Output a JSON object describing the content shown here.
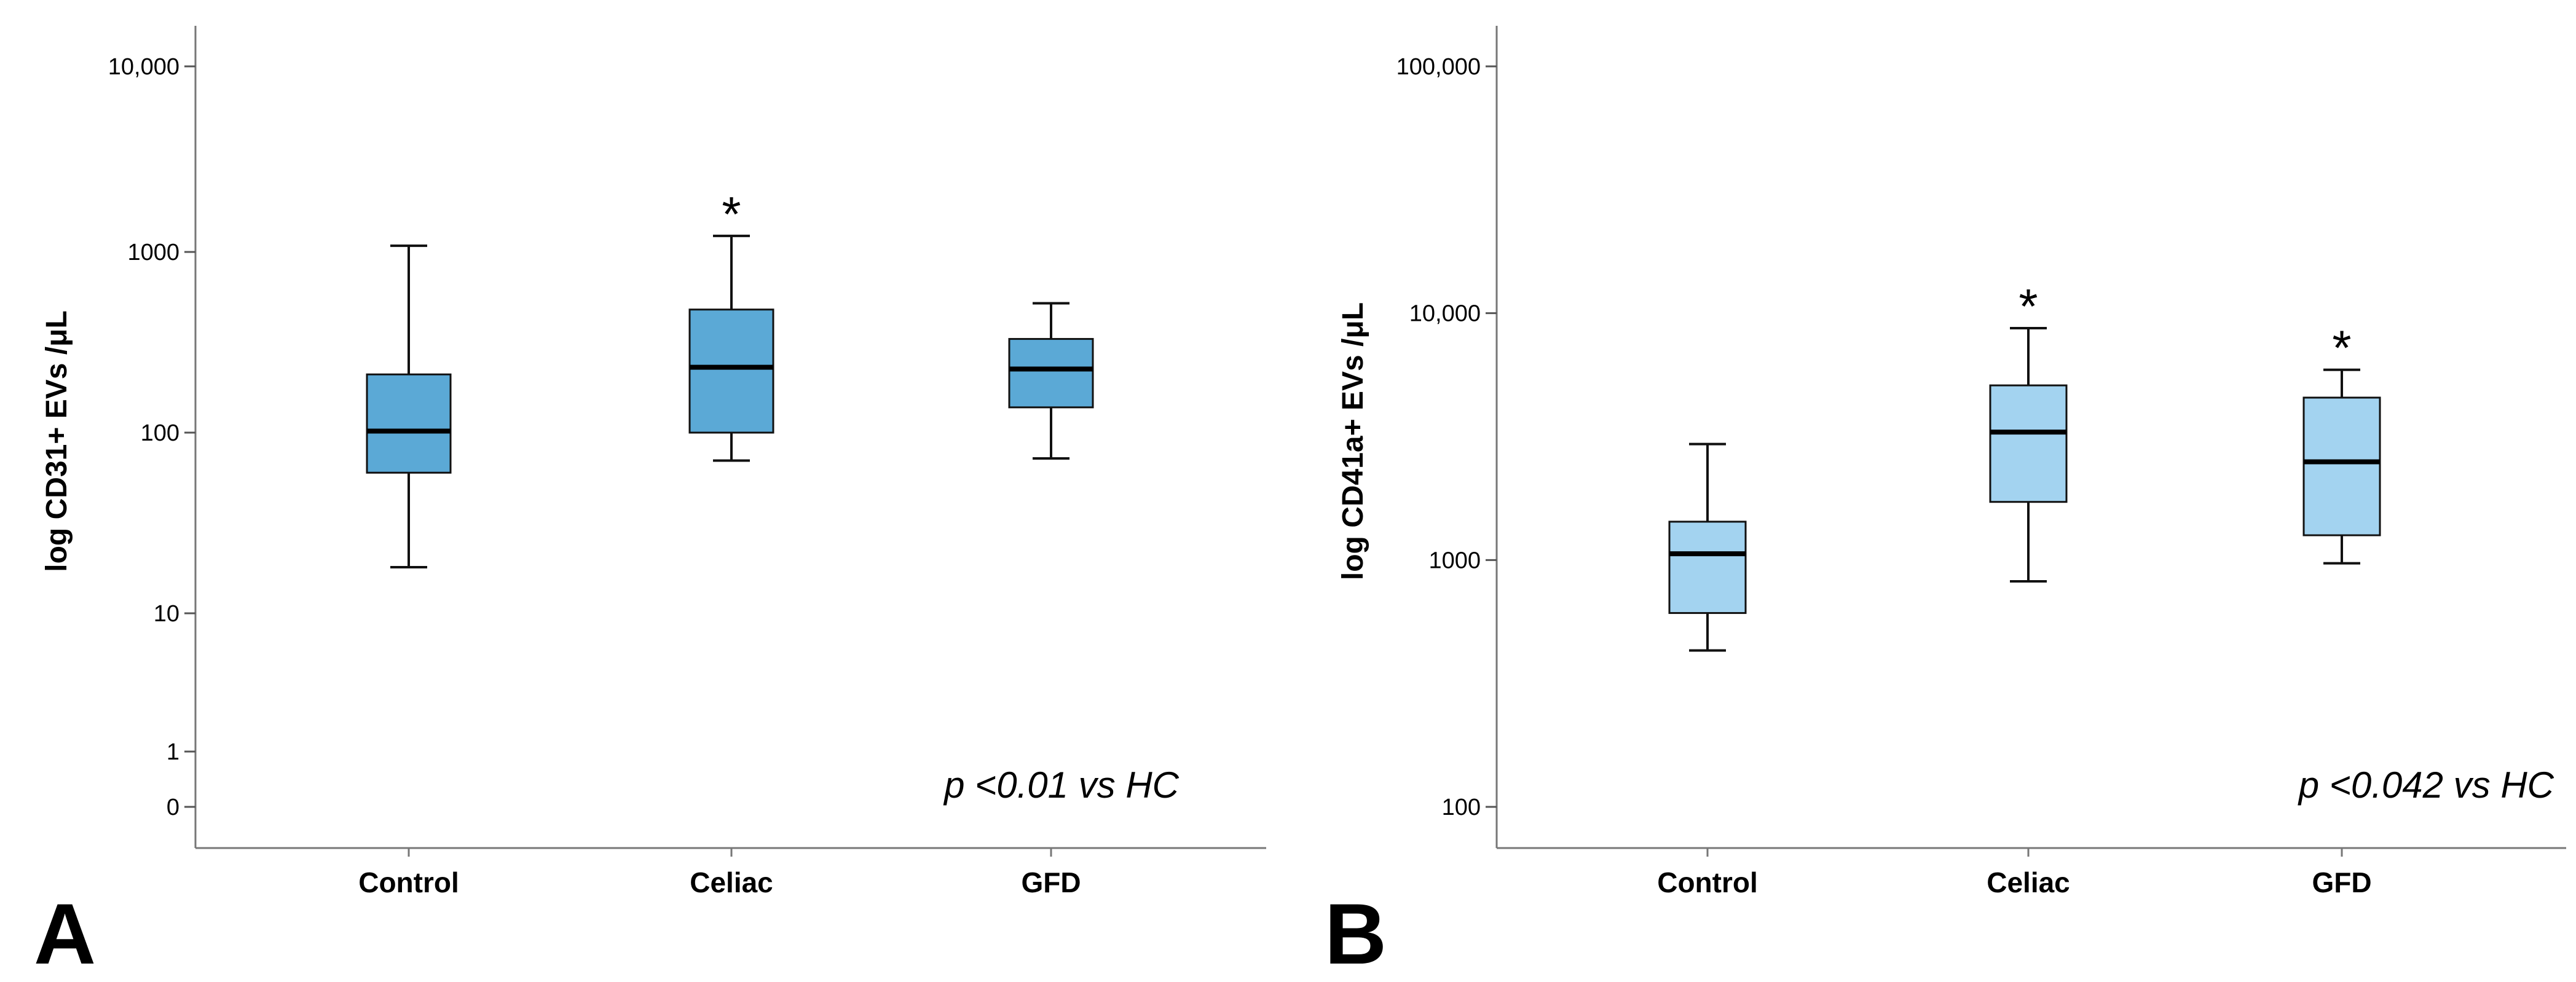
{
  "chart_data": [
    {
      "type": "box",
      "panel_label": "A",
      "ylabel": "log CD31+ EVs /μL",
      "yscale": "log",
      "yticks": [
        {
          "value": 0,
          "label": "0"
        },
        {
          "value": 1,
          "label": "1"
        },
        {
          "value": 10,
          "label": "10"
        },
        {
          "value": 100,
          "label": "100"
        },
        {
          "value": 1000,
          "label": "1000"
        },
        {
          "value": 10000,
          "label": "10,000"
        }
      ],
      "annotation": "p <0.01 vs HC",
      "box_color": "#5ba9d6",
      "categories": [
        "Control",
        "Celiac",
        "GFD"
      ],
      "boxes": [
        {
          "category": "Control",
          "whisker_low": 18,
          "q1": 60,
          "median": 102,
          "q3": 210,
          "whisker_high": 1080,
          "significant": false
        },
        {
          "category": "Celiac",
          "whisker_low": 70,
          "q1": 100,
          "median": 230,
          "q3": 480,
          "whisker_high": 1220,
          "significant": true
        },
        {
          "category": "GFD",
          "whisker_low": 72,
          "q1": 138,
          "median": 225,
          "q3": 330,
          "whisker_high": 520,
          "significant": false
        }
      ],
      "significance_marker": "*"
    },
    {
      "type": "box",
      "panel_label": "B",
      "ylabel": "log CD41a+ EVs /μL",
      "yscale": "log",
      "yticks": [
        {
          "value": 100,
          "label": "100"
        },
        {
          "value": 1000,
          "label": "1000"
        },
        {
          "value": 10000,
          "label": "10,000"
        },
        {
          "value": 100000,
          "label": "100,000"
        }
      ],
      "annotation": "p <0.042 vs HC",
      "box_color": "#a3d3f0",
      "categories": [
        "Control",
        "Celiac",
        "GFD"
      ],
      "boxes": [
        {
          "category": "Control",
          "whisker_low": 430,
          "q1": 610,
          "median": 1060,
          "q3": 1430,
          "whisker_high": 2950,
          "significant": false
        },
        {
          "category": "Celiac",
          "whisker_low": 820,
          "q1": 1720,
          "median": 3300,
          "q3": 5100,
          "whisker_high": 8700,
          "significant": true
        },
        {
          "category": "GFD",
          "whisker_low": 970,
          "q1": 1260,
          "median": 2500,
          "q3": 4550,
          "whisker_high": 5900,
          "significant": true
        }
      ],
      "significance_marker": "*"
    }
  ]
}
